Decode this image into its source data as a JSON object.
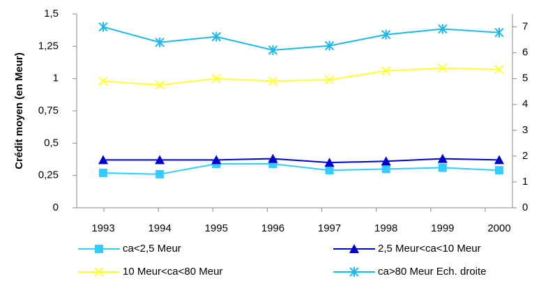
{
  "chart_data": {
    "type": "line",
    "y_label": "Crédit moyen (en Meur)",
    "categories": [
      "1993",
      "1994",
      "1995",
      "1996",
      "1997",
      "1998",
      "1999",
      "2000"
    ],
    "ylim": [
      0,
      1.5
    ],
    "yticks": [
      0,
      {
        "value": 0.25,
        "label": "0,25"
      },
      {
        "value": 0.5,
        "label": "0,5"
      },
      {
        "value": 0.75,
        "label": "0,75"
      },
      1,
      {
        "value": 1.25,
        "label": "1,25"
      },
      {
        "value": 1.5,
        "label": "1,5"
      }
    ],
    "y2lim": [
      0,
      7.5
    ],
    "y2ticks": [
      0,
      1,
      2,
      3,
      4,
      5,
      6,
      7
    ],
    "series": [
      {
        "name": "ca<2,5 Meur",
        "color": "#33ccff",
        "marker": "square",
        "values": [
          0.27,
          0.26,
          0.34,
          0.34,
          0.29,
          0.3,
          0.31,
          0.29
        ]
      },
      {
        "name": "2,5 Meur<ca<10 Meur",
        "color": "#0000cc",
        "marker": "triangle",
        "values": [
          0.37,
          0.37,
          0.37,
          0.38,
          0.35,
          0.36,
          0.38,
          0.37
        ]
      },
      {
        "name": "10 Meur<ca<80 Meur",
        "color": "#ffff33",
        "marker": "x",
        "values": [
          0.98,
          0.95,
          1.0,
          0.98,
          0.99,
          1.06,
          1.08,
          1.07
        ]
      },
      {
        "name": "ca>80 Meur Ech. droite",
        "color": "#1ab8ee",
        "marker": "asterisk",
        "axis": "y2",
        "values": [
          7.0,
          6.4,
          6.62,
          6.1,
          6.27,
          6.7,
          6.92,
          6.78
        ]
      }
    ]
  }
}
